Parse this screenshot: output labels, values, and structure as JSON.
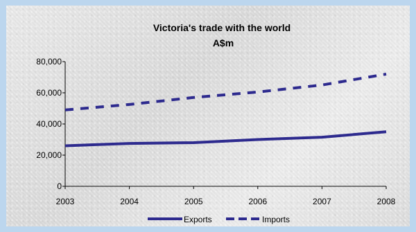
{
  "chart_data": {
    "type": "line",
    "title": "Victoria's trade with the world",
    "subtitle": "A$m",
    "x": [
      "2003",
      "2004",
      "2005",
      "2006",
      "2007",
      "2008"
    ],
    "ylim": [
      0,
      80000
    ],
    "yticks": [
      "0",
      "20,000",
      "40,000",
      "60,000",
      "80,000"
    ],
    "grid": false,
    "legend_position": "bottom",
    "series": [
      {
        "name": "Exports",
        "values": [
          26000,
          27500,
          28000,
          30000,
          31500,
          35000
        ],
        "color": "#2d2a8e",
        "style": "solid"
      },
      {
        "name": "Imports",
        "values": [
          49000,
          52500,
          57000,
          60500,
          65000,
          72000
        ],
        "color": "#2d2a8e",
        "style": "dashed"
      }
    ]
  },
  "colors": {
    "frame": "#bcd6ee",
    "series": "#2d2a8e"
  }
}
